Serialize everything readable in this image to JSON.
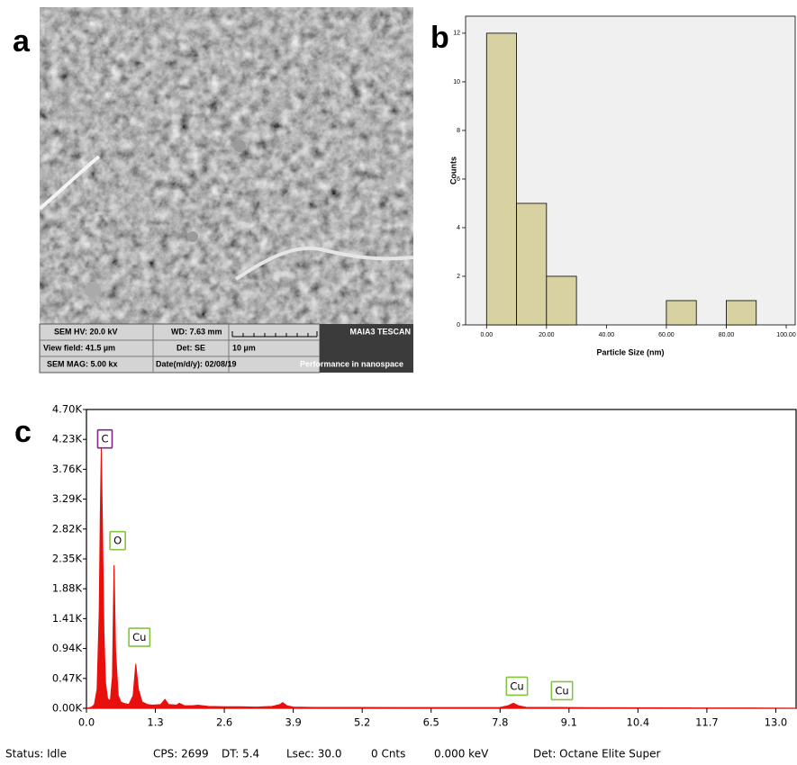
{
  "panel_labels": [
    "a",
    "b",
    "c"
  ],
  "sem_info": {
    "hv": "SEM HV: 20.0 kV",
    "wd": "WD: 7.63 mm",
    "brand": "MAIA3 TESCAN",
    "view_field": "View field: 41.5 µm",
    "det": "Det: SE",
    "scale": "10 µm",
    "mag": "SEM MAG: 5.00 kx",
    "date": "Date(m/d/y): 02/08/19",
    "slogan": "Performance in nanospace"
  },
  "chart_data": [
    {
      "type": "histogram",
      "xlabel": "Particle Size (nm)",
      "ylabel": "Counts",
      "bins": [
        0,
        10,
        20,
        30,
        40,
        50,
        60,
        70,
        80,
        90
      ],
      "counts": [
        12,
        5,
        2,
        0,
        0,
        0,
        1,
        0,
        1
      ],
      "color": "#d8d2a2",
      "xlim": [
        -7,
        103
      ],
      "ylim": [
        0,
        12.7
      ],
      "xticks": [
        {
          "value": 0,
          "label": "0.00"
        },
        {
          "value": 20,
          "label": "20.00"
        },
        {
          "value": 40,
          "label": "40.00"
        },
        {
          "value": 60,
          "label": "60.00"
        },
        {
          "value": 80,
          "label": "80.00"
        },
        {
          "value": 100,
          "label": "100.00"
        }
      ],
      "yticks": [
        0,
        2,
        4,
        6,
        8,
        10,
        12
      ]
    },
    {
      "type": "area",
      "x": [
        0.0,
        0.1,
        0.15,
        0.2,
        0.24,
        0.26,
        0.28,
        0.3,
        0.33,
        0.36,
        0.4,
        0.45,
        0.49,
        0.52,
        0.55,
        0.6,
        0.65,
        0.7,
        0.8,
        0.88,
        0.93,
        0.98,
        1.05,
        1.15,
        1.25,
        1.4,
        1.48,
        1.55,
        1.7,
        1.75,
        1.85,
        2.0,
        2.1,
        2.3,
        2.6,
        2.9,
        3.2,
        3.5,
        3.65,
        3.7,
        3.78,
        3.9,
        4.3,
        5.0,
        6.0,
        7.0,
        7.8,
        7.95,
        8.05,
        8.15,
        8.3,
        8.9,
        9.5,
        10.5,
        11.5,
        12.5,
        13.4
      ],
      "values": [
        0,
        20,
        60,
        300,
        1500,
        3000,
        4100,
        3000,
        1200,
        400,
        150,
        120,
        500,
        2250,
        900,
        200,
        100,
        80,
        60,
        200,
        700,
        300,
        100,
        60,
        50,
        60,
        140,
        60,
        50,
        80,
        40,
        40,
        50,
        30,
        25,
        25,
        20,
        30,
        60,
        90,
        40,
        20,
        15,
        15,
        12,
        12,
        15,
        40,
        80,
        40,
        15,
        15,
        10,
        8,
        6,
        5,
        0
      ],
      "color": "#e8100c",
      "xlim": [
        0,
        13.4
      ],
      "ylim": [
        0,
        4700
      ],
      "xticks": [
        {
          "value": 0,
          "label": "0.0"
        },
        1.3,
        2.6,
        3.9,
        5.2,
        6.5,
        7.8,
        9.1,
        10.4,
        11.7,
        {
          "value": 13,
          "label": "13.0"
        }
      ],
      "yticks": [
        {
          "value": 0,
          "label": "0.00K"
        },
        {
          "value": 470,
          "label": "0.47K"
        },
        {
          "value": 940,
          "label": "0.94K"
        },
        {
          "value": 1410,
          "label": "1.41K"
        },
        {
          "value": 1880,
          "label": "1.88K"
        },
        {
          "value": 2350,
          "label": "2.35K"
        },
        {
          "value": 2820,
          "label": "2.82K"
        },
        {
          "value": 3290,
          "label": "3.29K"
        },
        {
          "value": 3760,
          "label": "3.76K"
        },
        {
          "value": 4230,
          "label": "4.23K"
        },
        {
          "value": 4700,
          "label": "4.70K"
        }
      ],
      "annotations": [
        {
          "text": "C",
          "x": 0.28,
          "y": 4230,
          "color": "#7a2a82"
        },
        {
          "text": "O",
          "x": 0.52,
          "y": 2630,
          "color": "#86c440"
        },
        {
          "text": "Cu",
          "x": 0.93,
          "y": 1110,
          "color": "#86c440"
        },
        {
          "text": "Cu",
          "x": 8.05,
          "y": 340,
          "color": "#86c440"
        },
        {
          "text": "Cu",
          "x": 8.9,
          "y": 270,
          "color": "#86c440"
        }
      ]
    }
  ],
  "status_bar": [
    "Status: Idle",
    "CPS: 2699",
    "DT: 5.4",
    "Lsec: 30.0",
    "0 Cnts",
    "0.000 keV",
    "Det: Octane Elite Super"
  ]
}
